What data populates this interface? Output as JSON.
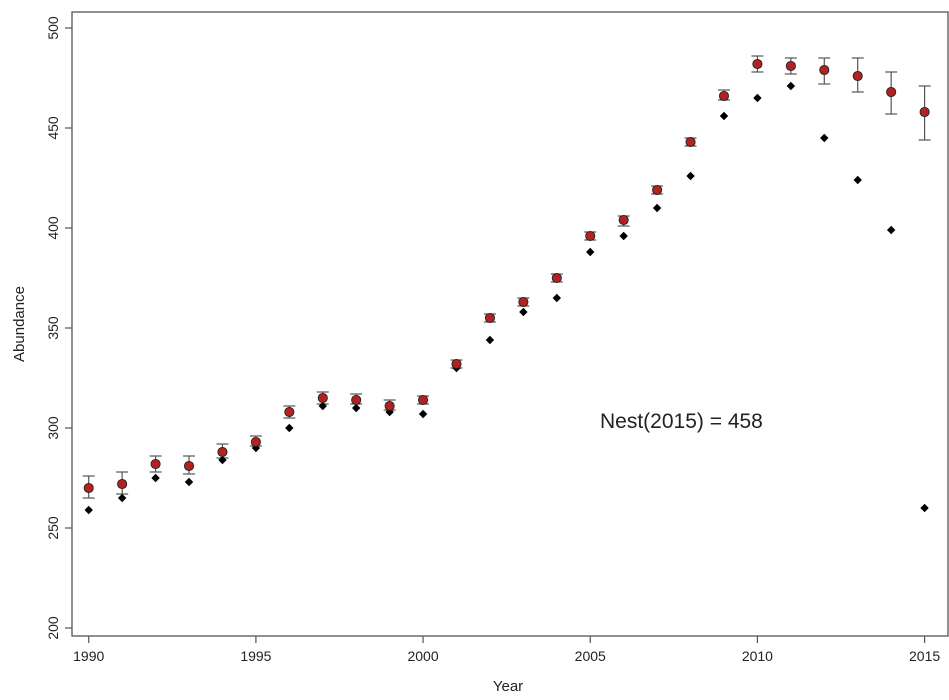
{
  "chart_data": {
    "type": "scatter",
    "xlabel": "Year",
    "ylabel": "Abundance",
    "xlim": [
      1989.5,
      2015.7
    ],
    "ylim": [
      196,
      508
    ],
    "x_ticks": [
      1990,
      1995,
      2000,
      2005,
      2010,
      2015
    ],
    "y_ticks": [
      200,
      250,
      300,
      350,
      400,
      450,
      500
    ],
    "x_tick_labels": [
      "1990",
      "1995",
      "2000",
      "2005",
      "2010",
      "2015"
    ],
    "y_tick_labels": [
      "200",
      "250",
      "300",
      "350",
      "400",
      "450",
      "500"
    ],
    "grid": false,
    "legend": "none",
    "annotation": {
      "text": "Nest(2015) = 458",
      "x": 2008.5,
      "y": 300
    },
    "colors": {
      "estimate": "#b22222",
      "observed": "#000000",
      "error_bar": "#555555",
      "axes": "#555555"
    },
    "series": [
      {
        "marker": "circle",
        "color": "#b22222",
        "x": [
          1990,
          1991,
          1992,
          1993,
          1994,
          1995,
          1996,
          1997,
          1998,
          1999,
          2000,
          2001,
          2002,
          2003,
          2004,
          2005,
          2006,
          2007,
          2008,
          2009,
          2010,
          2011,
          2012,
          2013,
          2014,
          2015
        ],
        "y": [
          270,
          272,
          282,
          281,
          288,
          293,
          308,
          315,
          314,
          311,
          314,
          332,
          355,
          363,
          375,
          396,
          404,
          419,
          443,
          466,
          482,
          481,
          479,
          476,
          468,
          458
        ],
        "y_low": [
          265,
          267,
          278,
          277,
          285,
          291,
          305,
          312,
          312,
          309,
          312,
          330,
          353,
          361,
          373,
          394,
          401,
          417,
          441,
          464,
          478,
          477,
          472,
          468,
          457,
          444
        ],
        "y_high": [
          276,
          278,
          286,
          286,
          292,
          296,
          311,
          318,
          317,
          314,
          316,
          334,
          357,
          365,
          377,
          398,
          406,
          421,
          445,
          469,
          486,
          485,
          485,
          485,
          478,
          471
        ]
      },
      {
        "marker": "diamond",
        "color": "#000000",
        "x": [
          1990,
          1991,
          1992,
          1993,
          1994,
          1995,
          1996,
          1997,
          1998,
          1999,
          2000,
          2001,
          2002,
          2003,
          2004,
          2005,
          2006,
          2007,
          2008,
          2009,
          2010,
          2011,
          2012,
          2013,
          2014,
          2015
        ],
        "y": [
          259,
          265,
          275,
          273,
          284,
          290,
          300,
          311,
          310,
          308,
          307,
          330,
          344,
          358,
          365,
          388,
          396,
          410,
          426,
          456,
          465,
          471,
          445,
          424,
          399,
          260
        ]
      }
    ]
  }
}
